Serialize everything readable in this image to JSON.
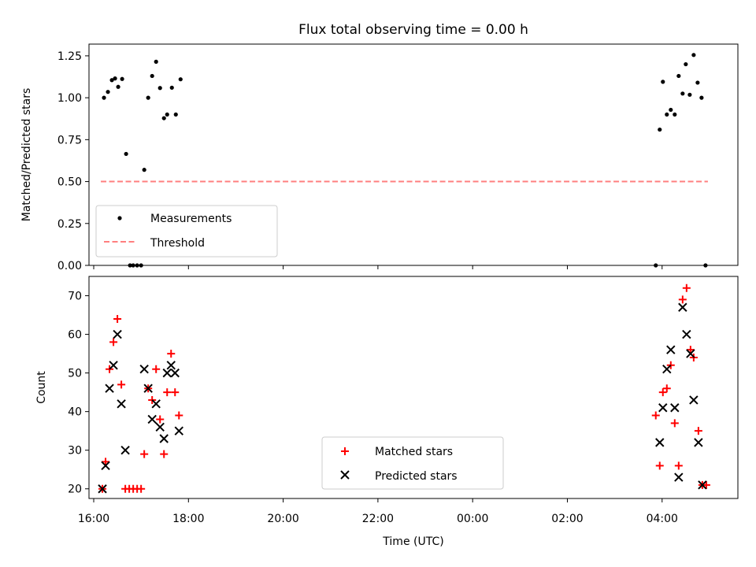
{
  "title": "Flux total observing time = 0.00 h",
  "colors": {
    "measurements": "#000000",
    "threshold": "#ff7f7f",
    "matched": "#ff0000",
    "predicted": "#000000"
  },
  "chart_data": [
    {
      "type": "scatter",
      "ylabel": "Matched/Predicted stars",
      "xlim": [
        "15:54",
        "05:36"
      ],
      "ylim": [
        0,
        1.32
      ],
      "y_ticks": [
        "0.00",
        "0.25",
        "0.50",
        "0.75",
        "1.00",
        "1.25"
      ],
      "legend_position": "lower-left",
      "series": [
        {
          "name": "Measurements",
          "marker": "dot",
          "points": [
            [
              "16:13",
              1.0
            ],
            [
              "16:18",
              1.035
            ],
            [
              "16:23",
              1.105
            ],
            [
              "16:27",
              1.115
            ],
            [
              "16:31",
              1.065
            ],
            [
              "16:36",
              1.112
            ],
            [
              "16:41",
              0.665
            ],
            [
              "16:46",
              0.0
            ],
            [
              "16:50",
              0.0
            ],
            [
              "16:55",
              0.0
            ],
            [
              "17:00",
              0.0
            ],
            [
              "17:04",
              0.57
            ],
            [
              "17:09",
              1.0
            ],
            [
              "17:14",
              1.13
            ],
            [
              "17:19",
              1.215
            ],
            [
              "17:24",
              1.058
            ],
            [
              "17:29",
              0.878
            ],
            [
              "17:33",
              0.9
            ],
            [
              "17:39",
              1.06
            ],
            [
              "17:44",
              0.9
            ],
            [
              "17:50",
              1.11
            ],
            [
              "03:52",
              0.0
            ],
            [
              "03:57",
              0.81
            ],
            [
              "04:01",
              1.095
            ],
            [
              "04:06",
              0.9
            ],
            [
              "04:11",
              0.928
            ],
            [
              "04:16",
              0.9
            ],
            [
              "04:21",
              1.13
            ],
            [
              "04:26",
              1.025
            ],
            [
              "04:30",
              1.2
            ],
            [
              "04:35",
              1.018
            ],
            [
              "04:40",
              1.255
            ],
            [
              "04:45",
              1.09
            ],
            [
              "04:50",
              1.0
            ],
            [
              "04:55",
              0.0
            ]
          ]
        },
        {
          "name": "Threshold",
          "style": "dashed",
          "points": [
            [
              "16:09",
              0.5
            ],
            [
              "04:58",
              0.5
            ]
          ]
        }
      ]
    },
    {
      "type": "scatter",
      "xlabel": "Time (UTC)",
      "ylabel": "Count",
      "xlim": [
        "15:54",
        "05:36"
      ],
      "ylim": [
        17.5,
        75
      ],
      "x_ticks": [
        "16:00",
        "18:00",
        "20:00",
        "22:00",
        "00:00",
        "02:00",
        "04:00"
      ],
      "y_ticks": [
        "20",
        "30",
        "40",
        "50",
        "60",
        "70"
      ],
      "legend_position": "lower-center",
      "series": [
        {
          "name": "Matched stars",
          "marker": "plus",
          "points": [
            [
              "16:11",
              20
            ],
            [
              "16:15",
              27
            ],
            [
              "16:20",
              51
            ],
            [
              "16:25",
              58
            ],
            [
              "16:30",
              64
            ],
            [
              "16:35",
              47
            ],
            [
              "16:40",
              20
            ],
            [
              "16:45",
              20
            ],
            [
              "16:50",
              20
            ],
            [
              "16:55",
              20
            ],
            [
              "17:00",
              20
            ],
            [
              "17:04",
              29
            ],
            [
              "17:09",
              46
            ],
            [
              "17:14",
              43
            ],
            [
              "17:19",
              51
            ],
            [
              "17:24",
              38
            ],
            [
              "17:29",
              29
            ],
            [
              "17:33",
              45
            ],
            [
              "17:38",
              55
            ],
            [
              "17:43",
              45
            ],
            [
              "17:48",
              39
            ],
            [
              "03:52",
              39
            ],
            [
              "03:57",
              26
            ],
            [
              "04:01",
              45
            ],
            [
              "04:06",
              46
            ],
            [
              "04:11",
              52
            ],
            [
              "04:16",
              37
            ],
            [
              "04:21",
              26
            ],
            [
              "04:26",
              69
            ],
            [
              "04:31",
              72
            ],
            [
              "04:36",
              56
            ],
            [
              "04:40",
              54
            ],
            [
              "04:46",
              35
            ],
            [
              "04:51",
              21
            ],
            [
              "04:56",
              21
            ]
          ]
        },
        {
          "name": "Predicted stars",
          "marker": "x",
          "points": [
            [
              "16:11",
              20
            ],
            [
              "16:15",
              26
            ],
            [
              "16:20",
              46
            ],
            [
              "16:25",
              52
            ],
            [
              "16:30",
              60
            ],
            [
              "16:35",
              42
            ],
            [
              "16:40",
              30
            ],
            [
              "17:04",
              51
            ],
            [
              "17:09",
              46
            ],
            [
              "17:14",
              38
            ],
            [
              "17:19",
              42
            ],
            [
              "17:24",
              36
            ],
            [
              "17:29",
              33
            ],
            [
              "17:33",
              50
            ],
            [
              "17:38",
              52
            ],
            [
              "17:43",
              50
            ],
            [
              "17:48",
              35
            ],
            [
              "03:57",
              32
            ],
            [
              "04:01",
              41
            ],
            [
              "04:06",
              51
            ],
            [
              "04:11",
              56
            ],
            [
              "04:16",
              41
            ],
            [
              "04:21",
              23
            ],
            [
              "04:26",
              67
            ],
            [
              "04:31",
              60
            ],
            [
              "04:36",
              55
            ],
            [
              "04:40",
              43
            ],
            [
              "04:46",
              32
            ],
            [
              "04:51",
              21
            ]
          ]
        }
      ]
    }
  ]
}
